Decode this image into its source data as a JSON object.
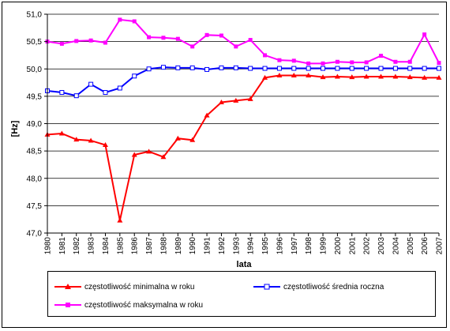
{
  "chart_data": {
    "type": "line",
    "title": "",
    "xlabel": "lata",
    "ylabel": "[Hz]",
    "ylim": [
      47.0,
      51.0
    ],
    "yticks": [
      "47,0",
      "47,5",
      "48,0",
      "48,5",
      "49,0",
      "49,5",
      "50,0",
      "50,5",
      "51,0"
    ],
    "grid": true,
    "legend_position": "bottom",
    "categories": [
      "1980",
      "1981",
      "1982",
      "1983",
      "1984",
      "1985",
      "1986",
      "1987",
      "1988",
      "1989",
      "1990",
      "1991",
      "1992",
      "1993",
      "1994",
      "1995",
      "1996",
      "1997",
      "1998",
      "1999",
      "2000",
      "2001",
      "2002",
      "2003",
      "2004",
      "2005",
      "2006",
      "2007"
    ],
    "series": [
      {
        "name": "częstotliwość minimalna w roku",
        "color": "#FF0000",
        "marker": "triangle",
        "values": [
          48.8,
          48.82,
          48.71,
          48.69,
          48.61,
          47.23,
          48.43,
          48.49,
          48.39,
          48.73,
          48.7,
          49.15,
          49.39,
          49.42,
          49.45,
          49.84,
          49.88,
          49.88,
          49.88,
          49.85,
          49.86,
          49.85,
          49.86,
          49.86,
          49.86,
          49.85,
          49.84,
          49.84
        ]
      },
      {
        "name": "częstotliwość średnia roczna",
        "color": "#0000FF",
        "marker": "square",
        "values": [
          49.6,
          49.57,
          49.51,
          49.72,
          49.57,
          49.65,
          49.87,
          50.0,
          50.03,
          50.02,
          50.02,
          49.99,
          50.02,
          50.02,
          50.01,
          50.01,
          50.01,
          50.01,
          50.01,
          50.01,
          50.01,
          50.01,
          50.01,
          50.01,
          50.01,
          50.01,
          50.01,
          50.01
        ]
      },
      {
        "name": "częstotliwość maksymalna w roku",
        "color": "#FF00FF",
        "marker": "square",
        "values": [
          50.5,
          50.46,
          50.51,
          50.52,
          50.48,
          50.9,
          50.87,
          50.58,
          50.57,
          50.55,
          50.41,
          50.62,
          50.61,
          50.41,
          50.53,
          50.25,
          50.16,
          50.15,
          50.1,
          50.1,
          50.13,
          50.12,
          50.12,
          50.24,
          50.13,
          50.13,
          50.63,
          50.11
        ]
      }
    ]
  }
}
